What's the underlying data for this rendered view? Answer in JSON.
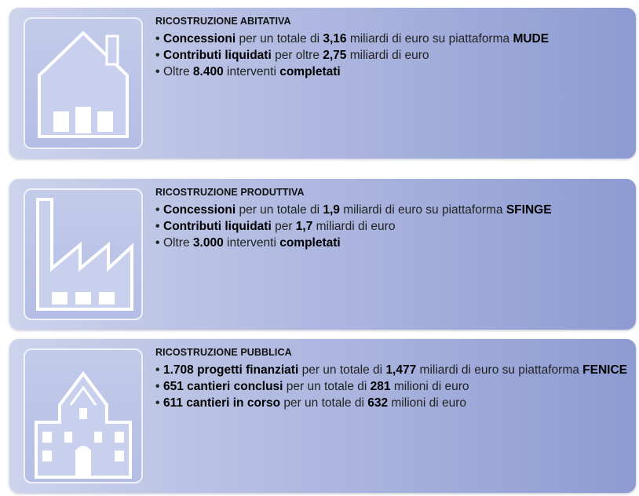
{
  "sections": [
    {
      "title": "RICOSTRUZIONE ABITATIVA",
      "bullets": [
        [
          {
            "text": "Concessioni",
            "bold": true
          },
          {
            "text": " per un totale di ",
            "bold": false
          },
          {
            "text": "3,16",
            "bold": true
          },
          {
            "text": " miliardi di euro su piattaforma ",
            "bold": false
          },
          {
            "text": "MUDE",
            "bold": true
          }
        ],
        [
          {
            "text": "Contributi liquidati",
            "bold": true
          },
          {
            "text": " per oltre ",
            "bold": false
          },
          {
            "text": "2,75",
            "bold": true
          },
          {
            "text": " miliardi di euro",
            "bold": false
          }
        ],
        [
          {
            "text": "Oltre ",
            "bold": false
          },
          {
            "text": "8.400",
            "bold": true
          },
          {
            "text": " interventi ",
            "bold": false
          },
          {
            "text": "completati",
            "bold": true
          }
        ]
      ]
    },
    {
      "title": "RICOSTRUZIONE PRODUTTIVA",
      "bullets": [
        [
          {
            "text": "Concessioni",
            "bold": true
          },
          {
            "text": " per un totale di ",
            "bold": false
          },
          {
            "text": "1,9",
            "bold": true
          },
          {
            "text": " miliardi di euro su piattaforma ",
            "bold": false
          },
          {
            "text": "SFINGE",
            "bold": true
          }
        ],
        [
          {
            "text": "Contributi liquidati",
            "bold": true
          },
          {
            "text": " per ",
            "bold": false
          },
          {
            "text": "1,7",
            "bold": true
          },
          {
            "text": " miliardi di euro",
            "bold": false
          }
        ],
        [
          {
            "text": "Oltre ",
            "bold": false
          },
          {
            "text": "3.000",
            "bold": true
          },
          {
            "text": " interventi ",
            "bold": false
          },
          {
            "text": "completati",
            "bold": true
          }
        ]
      ]
    },
    {
      "title": "RICOSTRUZIONE PUBBLICA",
      "bullets": [
        [
          {
            "text": "1.708 progetti finanziati",
            "bold": true
          },
          {
            "text": " per un totale di ",
            "bold": false
          },
          {
            "text": "1,477",
            "bold": true
          },
          {
            "text": " miliardi di euro su piattaforma ",
            "bold": false
          },
          {
            "text": "FENICE",
            "bold": true
          }
        ],
        [
          {
            "text": "651 cantieri conclusi",
            "bold": true
          },
          {
            "text": " per un totale di ",
            "bold": false
          },
          {
            "text": "281",
            "bold": true
          },
          {
            "text": " milioni di euro",
            "bold": false
          }
        ],
        [
          {
            "text": "611 cantieri in corso",
            "bold": true
          },
          {
            "text": " per un totale di ",
            "bold": false
          },
          {
            "text": "632",
            "bold": true
          },
          {
            "text": " milioni di euro",
            "bold": false
          }
        ]
      ]
    }
  ]
}
